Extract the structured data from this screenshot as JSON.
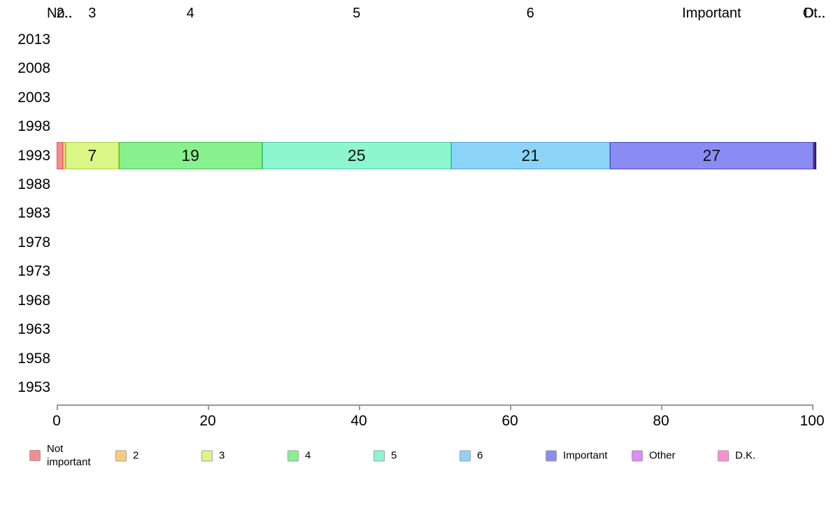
{
  "chart_data": {
    "type": "bar",
    "orientation": "horizontal",
    "stacked": true,
    "title": "",
    "xlabel": "",
    "ylabel": "",
    "grid": false,
    "legend_position": "bottom",
    "x_axis": {
      "min": 0,
      "max": 100,
      "ticks": [
        "0",
        "20",
        "40",
        "60",
        "80",
        "100"
      ]
    },
    "categories": [
      "2013",
      "2008",
      "2003",
      "1998",
      "1993",
      "1988",
      "1983",
      "1978",
      "1973",
      "1968",
      "1963",
      "1958",
      "1953"
    ],
    "data_row": "1993",
    "series": [
      {
        "name": "Not important",
        "top_label": "No..",
        "value": 0.8,
        "show_value": false,
        "value_label": "",
        "color": "#f48d8d",
        "border": "#de5c5c"
      },
      {
        "name": "2",
        "top_label": "2..",
        "value": 0.4,
        "show_value": false,
        "value_label": "",
        "color": "#f8cd7e",
        "border": "#e2a945"
      },
      {
        "name": "3",
        "top_label": "3",
        "value": 7,
        "show_value": true,
        "value_label": "7",
        "color": "#daf687",
        "border": "#a9d33f"
      },
      {
        "name": "4",
        "top_label": "4",
        "value": 19,
        "show_value": true,
        "value_label": "19",
        "color": "#88f18e",
        "border": "#48c14f"
      },
      {
        "name": "5",
        "top_label": "5",
        "value": 25,
        "show_value": true,
        "value_label": "25",
        "color": "#8df5d0",
        "border": "#45d0a0"
      },
      {
        "name": "6",
        "top_label": "6",
        "value": 21,
        "show_value": true,
        "value_label": "21",
        "color": "#8cd4f7",
        "border": "#4fa4da"
      },
      {
        "name": "Important",
        "top_label": "Important",
        "value": 27,
        "show_value": true,
        "value_label": "27",
        "color": "#8b8cf3",
        "border": "#4b4bc4"
      },
      {
        "name": "Other",
        "top_label": "Ot..",
        "value": 0.1,
        "show_value": false,
        "value_label": "",
        "color": "#de8af7",
        "border": "#50288a"
      },
      {
        "name": "D.K.",
        "top_label": "D...",
        "value": 0.1,
        "show_value": false,
        "value_label": "",
        "color": "#fa8fd4",
        "border": "#3a2060"
      }
    ]
  },
  "legend": {
    "items": [
      {
        "label": "Not important",
        "color": "#f48d8d"
      },
      {
        "label": "2",
        "color": "#f8cd7e"
      },
      {
        "label": "3",
        "color": "#daf687"
      },
      {
        "label": "4",
        "color": "#88f18e"
      },
      {
        "label": "5",
        "color": "#8df5d0"
      },
      {
        "label": "6",
        "color": "#8cd4f7"
      },
      {
        "label": "Important",
        "color": "#8b8cf3"
      },
      {
        "label": "Other",
        "color": "#de8af7"
      },
      {
        "label": "D.K.",
        "color": "#fa8fd4"
      }
    ]
  }
}
